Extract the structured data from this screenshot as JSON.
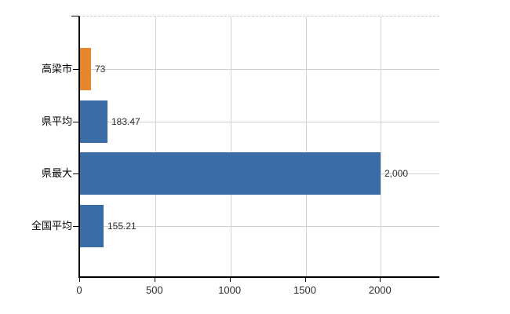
{
  "chart_data": {
    "type": "bar",
    "orientation": "horizontal",
    "title": "",
    "xlabel": "",
    "ylabel": "",
    "categories": [
      "高梁市",
      "県平均",
      "県最大",
      "全国平均"
    ],
    "values": [
      73,
      183.47,
      2000,
      155.21
    ],
    "value_labels": [
      "73",
      "183.47",
      "2,000",
      "155.21"
    ],
    "bar_colors": [
      "#e5872d",
      "#3a6ca6",
      "#3a6ca6",
      "#3a6ca6"
    ],
    "x_ticks": [
      0,
      500,
      1000,
      1500,
      2000
    ],
    "x_tick_labels": [
      "0",
      "500",
      "1000",
      "1500",
      "2000"
    ],
    "xlim": [
      0,
      2400
    ],
    "grid": true,
    "legend": "none",
    "plot_border_top": "dashed",
    "colors": {
      "bar_blue": "#3a6ca6",
      "bar_orange": "#e5872d",
      "axis_line": "#000000",
      "vertical_gridline": "#d8d2d2",
      "horizontal_gridline": "#cdd4c7",
      "dashed_top_border": "#c9c6c6",
      "label_text": "#2b2b2b"
    }
  }
}
